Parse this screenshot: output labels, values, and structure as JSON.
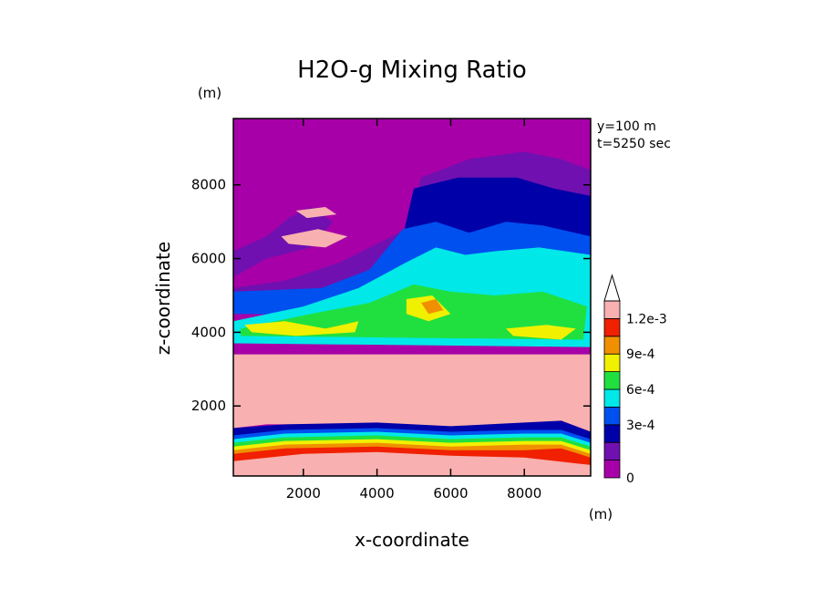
{
  "chart_data": {
    "type": "heatmap",
    "title": "H2O-g Mixing Ratio",
    "xlabel": "x-coordinate",
    "ylabel": "z-coordinate",
    "x_unit": "(m)",
    "y_unit": "(m)",
    "info": [
      "y=100 m",
      "t=5250 sec"
    ],
    "xlim": [
      100,
      9800
    ],
    "ylim": [
      100,
      9800
    ],
    "x_ticks": [
      2000,
      4000,
      6000,
      8000
    ],
    "y_ticks": [
      2000,
      4000,
      6000,
      8000
    ],
    "x_tick_labels": [
      "2000",
      "4000",
      "6000",
      "8000"
    ],
    "y_tick_labels": [
      "2000",
      "4000",
      "6000",
      "8000"
    ],
    "colorbar": {
      "levels": [
        0,
        0.00015,
        0.0003,
        0.00045,
        0.0006,
        0.00075,
        0.0009,
        0.00105,
        0.0012
      ],
      "colors": [
        "#a800a8",
        "#7010b0",
        "#0000a8",
        "#0050f0",
        "#00e8e8",
        "#20e040",
        "#f0f000",
        "#f09000",
        "#f02000",
        "#f8b0b0"
      ],
      "tick_values": [
        0,
        0.0003,
        0.0006,
        0.0009,
        0.0012
      ],
      "tick_labels": [
        "0",
        "3e-4",
        "6e-4",
        "9e-4",
        "1.2e-3"
      ],
      "extend": "max",
      "extend_color": "#ffffff"
    },
    "field": {
      "description": "layered regions, each polygon in data units (x m, z m), drawn in order; value = color index",
      "regions": [
        {
          "level": 0,
          "points": [
            [
              100,
              100
            ],
            [
              9800,
              100
            ],
            [
              9800,
              9800
            ],
            [
              100,
              9800
            ]
          ]
        },
        {
          "level": 1,
          "points": [
            [
              100,
              5200
            ],
            [
              1500,
              5400
            ],
            [
              3000,
              5900
            ],
            [
              4800,
              6800
            ],
            [
              5200,
              8200
            ],
            [
              6500,
              8700
            ],
            [
              8000,
              8900
            ],
            [
              9000,
              8700
            ],
            [
              9800,
              8400
            ],
            [
              9800,
              5000
            ],
            [
              100,
              4900
            ]
          ]
        },
        {
          "level": 1,
          "points": [
            [
              100,
              5500
            ],
            [
              1000,
              6000
            ],
            [
              2200,
              6300
            ],
            [
              2800,
              7000
            ],
            [
              2200,
              7400
            ],
            [
              1600,
              7100
            ],
            [
              1000,
              6600
            ],
            [
              100,
              6200
            ]
          ]
        },
        {
          "level": 1,
          "points": [
            [
              100,
              3400
            ],
            [
              9800,
              3400
            ],
            [
              9800,
              2900
            ],
            [
              100,
              2900
            ]
          ]
        },
        {
          "level": 2,
          "points": [
            [
              4700,
              6600
            ],
            [
              5000,
              7900
            ],
            [
              6200,
              8200
            ],
            [
              7800,
              8200
            ],
            [
              8800,
              7900
            ],
            [
              9800,
              7700
            ],
            [
              9800,
              5400
            ],
            [
              4700,
              5600
            ]
          ]
        },
        {
          "level": 3,
          "points": [
            [
              3800,
              5700
            ],
            [
              4700,
              6800
            ],
            [
              5600,
              7000
            ],
            [
              6500,
              6700
            ],
            [
              7500,
              7000
            ],
            [
              8500,
              6900
            ],
            [
              9800,
              6600
            ],
            [
              9800,
              4400
            ],
            [
              100,
              4500
            ],
            [
              100,
              5100
            ],
            [
              2500,
              5200
            ]
          ]
        },
        {
          "level": 4,
          "points": [
            [
              100,
              4300
            ],
            [
              2000,
              4700
            ],
            [
              3500,
              5200
            ],
            [
              4800,
              5900
            ],
            [
              5600,
              6300
            ],
            [
              6400,
              6100
            ],
            [
              7200,
              6200
            ],
            [
              8400,
              6300
            ],
            [
              9800,
              6100
            ],
            [
              9800,
              3600
            ],
            [
              100,
              3700
            ]
          ]
        },
        {
          "level": 5,
          "points": [
            [
              300,
              4100
            ],
            [
              2200,
              4500
            ],
            [
              3800,
              4800
            ],
            [
              5000,
              5300
            ],
            [
              6000,
              5100
            ],
            [
              7200,
              5000
            ],
            [
              8500,
              5100
            ],
            [
              9700,
              4700
            ],
            [
              9600,
              3800
            ],
            [
              300,
              3900
            ]
          ]
        },
        {
          "level": 6,
          "points": [
            [
              400,
              4200
            ],
            [
              1500,
              4300
            ],
            [
              2600,
              4100
            ],
            [
              3500,
              4300
            ],
            [
              3400,
              4000
            ],
            [
              1800,
              3900
            ],
            [
              600,
              4000
            ]
          ]
        },
        {
          "level": 6,
          "points": [
            [
              4800,
              4900
            ],
            [
              5500,
              5000
            ],
            [
              6000,
              4500
            ],
            [
              5400,
              4300
            ],
            [
              4800,
              4500
            ]
          ]
        },
        {
          "level": 6,
          "points": [
            [
              7500,
              4100
            ],
            [
              8600,
              4200
            ],
            [
              9400,
              4100
            ],
            [
              9000,
              3800
            ],
            [
              7700,
              3900
            ]
          ]
        },
        {
          "level": 7,
          "points": [
            [
              5200,
              4800
            ],
            [
              5600,
              4900
            ],
            [
              5800,
              4600
            ],
            [
              5400,
              4500
            ]
          ]
        },
        {
          "level": 9,
          "points": [
            [
              1400,
              6600
            ],
            [
              2400,
              6800
            ],
            [
              3200,
              6600
            ],
            [
              2600,
              6300
            ],
            [
              1600,
              6400
            ]
          ]
        },
        {
          "level": 9,
          "points": [
            [
              1800,
              7300
            ],
            [
              2600,
              7400
            ],
            [
              2900,
              7200
            ],
            [
              2100,
              7100
            ]
          ]
        },
        {
          "level": 9,
          "points": [
            [
              100,
              1400
            ],
            [
              1000,
              1500
            ],
            [
              3000,
              1500
            ],
            [
              6000,
              1400
            ],
            [
              8000,
              1500
            ],
            [
              9000,
              1600
            ],
            [
              9800,
              1300
            ],
            [
              9800,
              3400
            ],
            [
              100,
              3400
            ]
          ]
        },
        {
          "level": 2,
          "points": [
            [
              100,
              1400
            ],
            [
              1500,
              1500
            ],
            [
              4000,
              1550
            ],
            [
              6000,
              1450
            ],
            [
              8000,
              1550
            ],
            [
              9000,
              1600
            ],
            [
              9800,
              1300
            ],
            [
              9800,
              100
            ],
            [
              100,
              100
            ]
          ]
        },
        {
          "level": 3,
          "points": [
            [
              100,
              1200
            ],
            [
              1500,
              1350
            ],
            [
              4000,
              1400
            ],
            [
              6000,
              1300
            ],
            [
              8000,
              1350
            ],
            [
              9000,
              1350
            ],
            [
              9800,
              1100
            ],
            [
              9800,
              100
            ],
            [
              100,
              100
            ]
          ]
        },
        {
          "level": 4,
          "points": [
            [
              100,
              1100
            ],
            [
              1500,
              1250
            ],
            [
              4000,
              1300
            ],
            [
              6000,
              1200
            ],
            [
              8000,
              1250
            ],
            [
              9000,
              1250
            ],
            [
              9800,
              1000
            ],
            [
              9800,
              100
            ],
            [
              100,
              100
            ]
          ]
        },
        {
          "level": 5,
          "points": [
            [
              100,
              1000
            ],
            [
              1500,
              1150
            ],
            [
              4000,
              1200
            ],
            [
              6000,
              1100
            ],
            [
              8000,
              1150
            ],
            [
              9000,
              1150
            ],
            [
              9800,
              900
            ],
            [
              9800,
              100
            ],
            [
              100,
              100
            ]
          ]
        },
        {
          "level": 6,
          "points": [
            [
              100,
              900
            ],
            [
              1500,
              1050
            ],
            [
              4000,
              1100
            ],
            [
              6000,
              1000
            ],
            [
              8000,
              1050
            ],
            [
              9000,
              1050
            ],
            [
              9800,
              800
            ],
            [
              9800,
              100
            ],
            [
              100,
              100
            ]
          ]
        },
        {
          "level": 7,
          "points": [
            [
              100,
              800
            ],
            [
              1500,
              950
            ],
            [
              4000,
              1000
            ],
            [
              6000,
              900
            ],
            [
              8000,
              950
            ],
            [
              9000,
              950
            ],
            [
              9800,
              700
            ],
            [
              9800,
              100
            ],
            [
              100,
              100
            ]
          ]
        },
        {
          "level": 8,
          "points": [
            [
              100,
              700
            ],
            [
              1500,
              850
            ],
            [
              4000,
              900
            ],
            [
              6000,
              800
            ],
            [
              8000,
              800
            ],
            [
              9000,
              850
            ],
            [
              9800,
              600
            ],
            [
              9800,
              100
            ],
            [
              100,
              100
            ]
          ]
        },
        {
          "level": 9,
          "points": [
            [
              100,
              500
            ],
            [
              2000,
              700
            ],
            [
              4000,
              750
            ],
            [
              6000,
              650
            ],
            [
              8000,
              600
            ],
            [
              9800,
              400
            ],
            [
              9800,
              100
            ],
            [
              100,
              100
            ]
          ]
        }
      ]
    }
  }
}
